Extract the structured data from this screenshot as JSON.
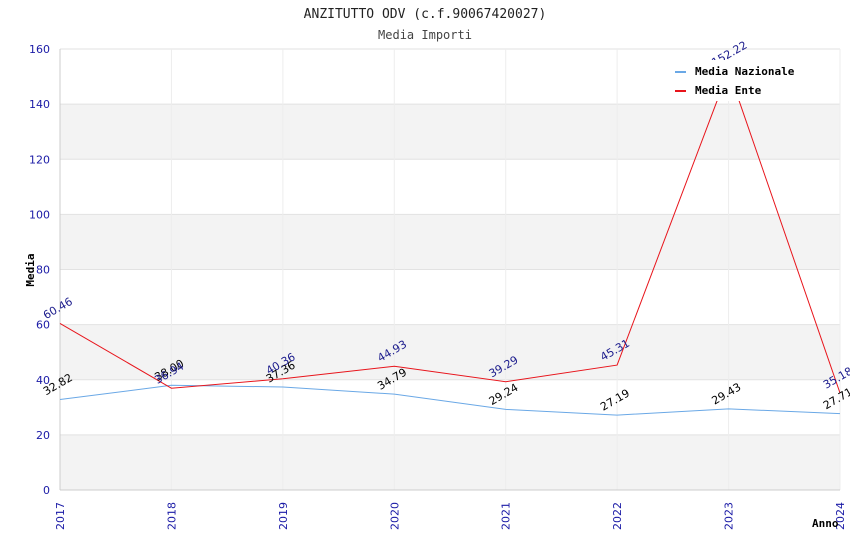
{
  "chart_data": {
    "type": "line",
    "title": "ANZITUTTO ODV (c.f.90067420027)",
    "subtitle": "Media Importi",
    "xlabel": "Anno",
    "ylabel": "Media",
    "ylim": [
      0,
      160
    ],
    "yticks": [
      "0",
      "20",
      "40",
      "60",
      "80",
      "100",
      "120",
      "140",
      "160"
    ],
    "categories": [
      "2017",
      "2018",
      "2019",
      "2020",
      "2021",
      "2022",
      "2023",
      "2024"
    ],
    "legend_position": "top-right",
    "grid": true,
    "series": [
      {
        "name": "Media Nazionale",
        "color": "#6aa8e6",
        "label_color": "#000000",
        "values": [
          32.82,
          38.0,
          37.36,
          34.79,
          29.24,
          27.19,
          29.43,
          27.71
        ],
        "labels": [
          "32.82",
          "38.00",
          "37.36",
          "34.79",
          "29.24",
          "27.19",
          "29.43",
          "27.71"
        ]
      },
      {
        "name": "Media Ente",
        "color": "#e8141b",
        "label_color": "#1a1a8c",
        "values": [
          60.46,
          36.94,
          40.36,
          44.93,
          39.29,
          45.31,
          152.22,
          35.18
        ],
        "labels": [
          "60.46",
          "36.94",
          "40.36",
          "44.93",
          "39.29",
          "45.31",
          "152.22",
          "35.18"
        ]
      }
    ]
  }
}
